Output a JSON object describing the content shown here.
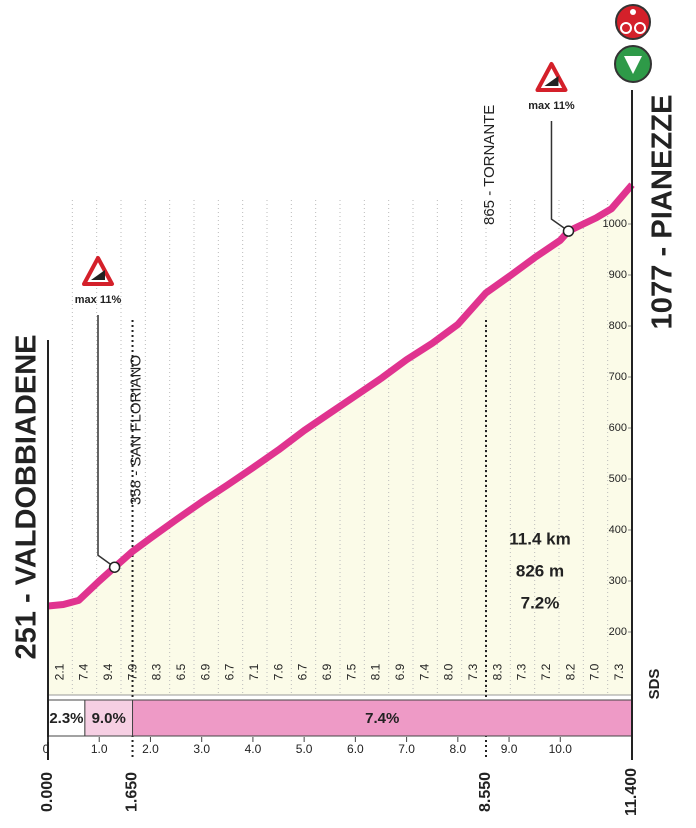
{
  "chart_data": {
    "type": "area",
    "start_label": "251 - VALDOBBIADENE",
    "end_label": "1077 - PIANEZZE",
    "x": [
      0,
      0.3,
      0.6,
      1.0,
      1.3,
      1.65,
      2.0,
      2.5,
      3.0,
      3.5,
      4.0,
      4.5,
      5.0,
      5.5,
      6.0,
      6.5,
      7.0,
      7.5,
      8.0,
      8.55,
      9.0,
      9.5,
      10.0,
      10.16,
      10.7,
      11.0,
      11.4
    ],
    "values": [
      251,
      254,
      262,
      300,
      327,
      358,
      384,
      420,
      455,
      488,
      522,
      557,
      595,
      629,
      663,
      697,
      734,
      766,
      803,
      865,
      897,
      934,
      968,
      986,
      1012,
      1030,
      1077
    ],
    "color": "#e0338f",
    "fill": "#fbfbe8",
    "xlim": [
      0,
      11.4
    ],
    "ylim": [
      200,
      1077
    ],
    "yticks": [
      200,
      300,
      400,
      500,
      600,
      700,
      800,
      900,
      1000
    ],
    "xticks": [
      0,
      {
        "value": 1,
        "label": "1.0"
      },
      {
        "value": 2,
        "label": "2.0"
      },
      {
        "value": 3,
        "label": "3.0"
      },
      {
        "value": 4,
        "label": "4.0"
      },
      {
        "value": 5,
        "label": "5.0"
      },
      {
        "value": 6,
        "label": "6.0"
      },
      {
        "value": 7,
        "label": "7.0"
      },
      {
        "value": 8,
        "label": "8.0"
      },
      {
        "value": 9,
        "label": "9.0"
      },
      {
        "value": 10,
        "label": "10.0"
      }
    ],
    "distance_marks": [
      {
        "value": 0,
        "label": "0.000"
      },
      {
        "value": 1.65,
        "label": "1.650"
      },
      {
        "value": 8.55,
        "label": "8.550"
      },
      {
        "value": 11.4,
        "label": "11.400"
      }
    ],
    "segment_gradients": [
      2.1,
      7.4,
      9.4,
      7.9,
      8.3,
      6.5,
      6.9,
      6.7,
      7.1,
      7.6,
      6.7,
      6.9,
      7.5,
      8.1,
      6.9,
      7.4,
      {
        "value": 8,
        "label": "8.0"
      },
      7.3,
      8.3,
      7.3,
      7.2,
      8.2,
      {
        "value": 7,
        "label": "7.0"
      },
      7.3
    ],
    "gradient_bands": [
      {
        "from": 0,
        "to": 0.72,
        "value": 2.3,
        "label": "2.3%",
        "color": "#ffffff"
      },
      {
        "from": 0.72,
        "to": 1.65,
        "value": 9.0,
        "label": "9.0%",
        "color": "#f6cfe3"
      },
      {
        "from": 1.65,
        "to": 11.4,
        "value": 7.4,
        "label": "7.4%",
        "color": "#ee9ac6"
      }
    ],
    "waypoints": [
      {
        "km": 1.65,
        "label": "358 - SAN FLORIANO"
      },
      {
        "km": 8.55,
        "label": "865 - TORNANTE"
      }
    ],
    "max_markers": [
      {
        "km": 1.3,
        "label": "max 11%"
      },
      {
        "km": 10.16,
        "label": "max 11%"
      }
    ],
    "info": [
      "11.4 km",
      "826 m",
      "7.2%"
    ],
    "logo": "SDS"
  }
}
